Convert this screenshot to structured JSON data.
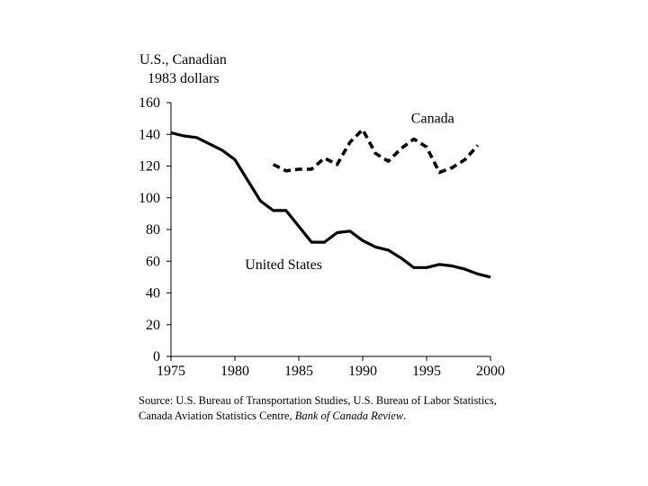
{
  "chart_data": {
    "type": "line",
    "ylabel_lines": [
      "U.S., Canadian",
      "1983 dollars"
    ],
    "xlim": [
      1975,
      2000
    ],
    "ylim": [
      0,
      160
    ],
    "xticks": [
      1975,
      1980,
      1985,
      1990,
      1995,
      2000
    ],
    "yticks": [
      0,
      20,
      40,
      60,
      80,
      100,
      120,
      140,
      160
    ],
    "grid": false,
    "series": [
      {
        "name": "United States",
        "style": "solid",
        "x": [
          1975,
          1976,
          1977,
          1978,
          1979,
          1980,
          1981,
          1982,
          1983,
          1984,
          1985,
          1986,
          1987,
          1988,
          1989,
          1990,
          1991,
          1992,
          1993,
          1994,
          1995,
          1996,
          1997,
          1998,
          1999,
          2000
        ],
        "y": [
          141,
          139,
          138,
          134,
          130,
          124,
          111,
          98,
          92,
          92,
          82,
          72,
          72,
          78,
          79,
          73,
          69,
          67,
          62,
          56,
          56,
          58,
          57,
          55,
          52,
          50
        ]
      },
      {
        "name": "Canada",
        "style": "dashed",
        "x": [
          1983,
          1984,
          1985,
          1986,
          1987,
          1988,
          1989,
          1990,
          1991,
          1992,
          1993,
          1994,
          1995,
          1996,
          1997,
          1998,
          1999
        ],
        "y": [
          121,
          117,
          118,
          118,
          125,
          121,
          135,
          143,
          128,
          123,
          131,
          137,
          132,
          116,
          119,
          124,
          133
        ]
      }
    ],
    "annotations": [
      {
        "text": "Canada",
        "x": 1994,
        "y": 150
      },
      {
        "text": "United States",
        "x": 1981,
        "y": 58
      }
    ]
  },
  "source_text": "Source: U.S. Bureau of Transportation Studies, U.S. Bureau of Labor Statistics,",
  "source_text2_plain": "Canada Aviation Statistics Centre, ",
  "source_text2_italic": "Bank of Canada Review",
  "source_text2_end": "."
}
